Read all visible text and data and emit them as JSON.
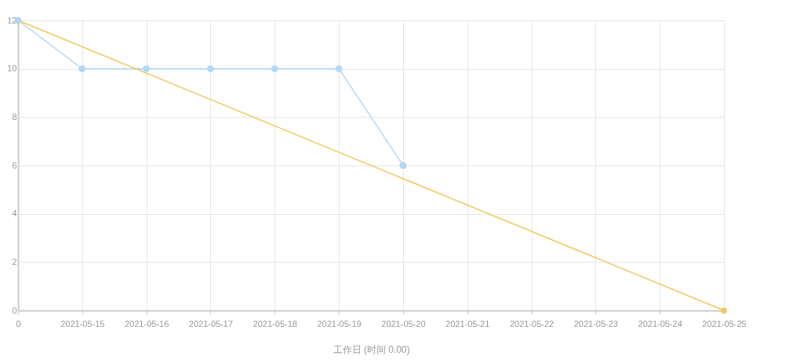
{
  "chart_data": {
    "type": "line",
    "xlabel": "工作日 (时间 0.00)",
    "categories": [
      "0",
      "2021-05-15",
      "2021-05-16",
      "2021-05-17",
      "2021-05-18",
      "2021-05-19",
      "2021-05-20",
      "2021-05-21",
      "2021-05-22",
      "2021-05-23",
      "2021-05-24",
      "2021-05-25"
    ],
    "series": [
      {
        "color": "#b3d8f5",
        "values": [
          12,
          10,
          10,
          10,
          10,
          10,
          6,
          null,
          null,
          null,
          null,
          null
        ]
      },
      {
        "color": "#f0c75a",
        "values": [
          12,
          null,
          null,
          null,
          null,
          null,
          null,
          null,
          null,
          null,
          null,
          0
        ]
      }
    ],
    "ylim": [
      0,
      12
    ],
    "yticks": [
      0,
      2,
      4,
      6,
      8,
      10,
      12
    ],
    "grid": true,
    "marker": "circle",
    "line_style": "solid"
  }
}
